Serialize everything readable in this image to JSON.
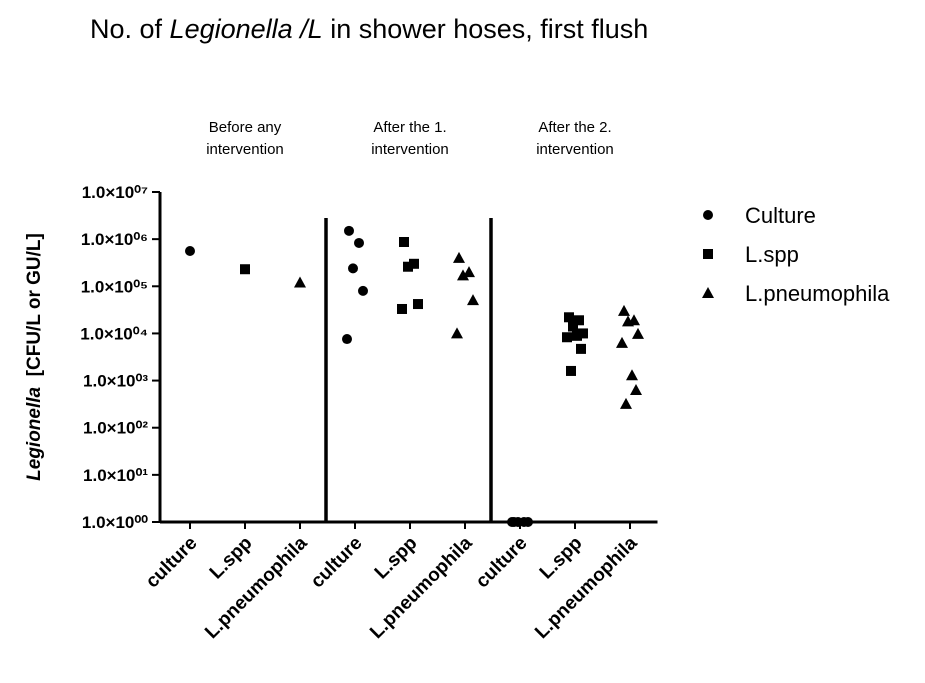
{
  "chart_data": {
    "type": "scatter",
    "title": [
      "No. of ",
      "Legionella /L",
      " in shower hoses, first flush"
    ],
    "ylabel": [
      "Legionella",
      "  [CFU/L or GU/L]"
    ],
    "log_y": true,
    "ylim": [
      1,
      10000000
    ],
    "yticks": [
      {
        "value": 1,
        "label": "1.0×10⁰⁰"
      },
      {
        "value": 10,
        "label": "1.0×10⁰¹"
      },
      {
        "value": 100,
        "label": "1.0×10⁰²"
      },
      {
        "value": 1000,
        "label": "1.0×10⁰³"
      },
      {
        "value": 10000,
        "label": "1.0×10⁰⁴"
      },
      {
        "value": 100000,
        "label": "1.0×10⁰⁵"
      },
      {
        "value": 1000000,
        "label": "1.0×10⁰⁶"
      },
      {
        "value": 10000000,
        "label": "1.0×10⁰⁷"
      }
    ],
    "groups": [
      [
        "Before any",
        "intervention"
      ],
      [
        "After the 1.",
        "intervention"
      ],
      [
        "After the 2.",
        "intervention"
      ]
    ],
    "categories": [
      "culture",
      "L.spp",
      "L.pneumophila",
      "culture",
      "L.spp",
      "L.pneumophila",
      "culture",
      "L.spp",
      "L.pneumophila"
    ],
    "legend": "right",
    "series": [
      {
        "name": "Culture",
        "marker": "circle",
        "color": "#000000",
        "values": [
          [
            560000
          ],
          null,
          null,
          [
            1500000,
            830000,
            240000,
            80000,
            7600
          ],
          null,
          null,
          [
            1,
            1,
            1,
            1,
            1
          ],
          null,
          null
        ]
      },
      {
        "name": "L.spp",
        "marker": "square",
        "color": "#000000",
        "values": [
          null,
          [
            230000
          ],
          null,
          null,
          [
            870000,
            300000,
            260000,
            42000,
            33000
          ],
          null,
          null,
          [
            22000,
            19000,
            14000,
            10000,
            8300,
            8900,
            4700,
            1600
          ],
          null
        ]
      },
      {
        "name": "L.pneumophila",
        "marker": "triangle",
        "color": "#000000",
        "values": [
          null,
          null,
          [
            120000
          ],
          null,
          null,
          [
            400000,
            200000,
            170000,
            51000,
            10000
          ],
          null,
          null,
          [
            30000,
            19000,
            18000,
            9800,
            6300,
            1300,
            630,
            320
          ]
        ]
      }
    ]
  }
}
